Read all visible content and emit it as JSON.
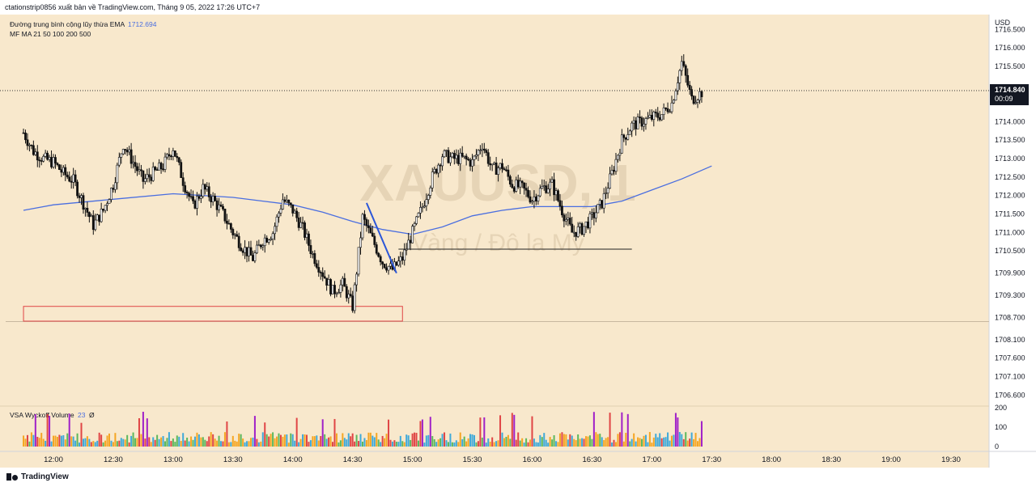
{
  "header": {
    "publish_line": "ctationstrip0856 xuất bản về TradingView.com, Tháng 9 05, 2022 17:26 UTC+7"
  },
  "footer": {
    "brand": "TradingView"
  },
  "colors": {
    "background": "#f8e8cc",
    "ema": "#4a6ee0",
    "ema_label": "#4a6ee0",
    "zone_border": "#e04545",
    "trendline": "#2b56d8",
    "level_line": "#222222",
    "price_badge": "#131722",
    "vol_orange": "#f5a623",
    "vol_blue": "#3fa9d9",
    "vol_green": "#5cb85c",
    "vol_red": "#e04545",
    "vol_purple": "#a020c8"
  },
  "chart_data": {
    "type": "candlestick",
    "symbol_watermark": "XAUUSD, 1",
    "watermark_subtitle": "Vàng / Đô la Mỹ",
    "currency_label": "USD",
    "indicators": [
      {
        "name": "Đường trung bình cộng lũy thừa EMA",
        "value": "1712.694"
      },
      {
        "name": "MF MA 21 50 100 200 500",
        "value": ""
      }
    ],
    "volume_indicator": {
      "name": "VSA Wyckoff Volume",
      "value": "23",
      "extra": "Ø",
      "ticks": [
        "200",
        "100",
        "0"
      ]
    },
    "y_ticks": [
      "1716.500",
      "1716.000",
      "1715.500",
      "1714.000",
      "1713.500",
      "1713.000",
      "1712.500",
      "1712.000",
      "1711.500",
      "1711.000",
      "1710.500",
      "1709.900",
      "1709.300",
      "1708.700",
      "1708.100",
      "1707.600",
      "1707.100",
      "1706.600"
    ],
    "y_range": [
      1706.3,
      1716.9
    ],
    "x_ticks": [
      "12:00",
      "12:30",
      "13:00",
      "13:30",
      "14:00",
      "14:30",
      "15:00",
      "15:30",
      "16:00",
      "16:30",
      "17:00",
      "17:30",
      "18:00",
      "18:30",
      "19:00",
      "19:30"
    ],
    "last_price": "1714.840",
    "countdown": "00:09",
    "zone": {
      "from_time": "11:45",
      "to_time": "14:55",
      "low": 1708.6,
      "high": 1709.0
    },
    "horizontal_line": 1708.6,
    "level_segment": {
      "from_time": "14:53",
      "to_time": "16:50",
      "price": 1710.55
    },
    "trendline": {
      "from_time": "14:37",
      "from_price": 1711.8,
      "to_time": "14:52",
      "to_price": 1709.9
    },
    "ema": {
      "times": [
        "11:45",
        "12:00",
        "12:30",
        "13:00",
        "13:15",
        "13:30",
        "13:45",
        "14:00",
        "14:15",
        "14:30",
        "14:45",
        "15:00",
        "15:15",
        "15:30",
        "15:45",
        "16:00",
        "16:15",
        "16:30",
        "16:45",
        "17:00",
        "17:15",
        "17:30"
      ],
      "values": [
        1711.6,
        1711.75,
        1711.9,
        1712.05,
        1712.0,
        1711.95,
        1711.85,
        1711.75,
        1711.55,
        1711.3,
        1711.08,
        1710.95,
        1711.15,
        1711.45,
        1711.6,
        1711.7,
        1711.7,
        1711.7,
        1711.85,
        1712.15,
        1712.45,
        1712.8
      ]
    },
    "price_path": {
      "times": [
        "11:45",
        "11:50",
        "11:55",
        "12:00",
        "12:05",
        "12:10",
        "12:15",
        "12:20",
        "12:25",
        "12:30",
        "12:35",
        "12:40",
        "12:45",
        "12:50",
        "12:55",
        "13:00",
        "13:05",
        "13:10",
        "13:15",
        "13:20",
        "13:25",
        "13:30",
        "13:35",
        "13:40",
        "13:45",
        "13:50",
        "13:55",
        "14:00",
        "14:05",
        "14:10",
        "14:15",
        "14:20",
        "14:25",
        "14:30",
        "14:35",
        "14:40",
        "14:45",
        "14:50",
        "14:55",
        "15:00",
        "15:05",
        "15:10",
        "15:15",
        "15:20",
        "15:25",
        "15:30",
        "15:35",
        "15:40",
        "15:45",
        "15:50",
        "15:55",
        "16:00",
        "16:05",
        "16:10",
        "16:15",
        "16:20",
        "16:25",
        "16:30",
        "16:35",
        "16:40",
        "16:45",
        "16:50",
        "16:55",
        "17:00",
        "17:05",
        "17:10",
        "17:15",
        "17:20",
        "17:25"
      ],
      "values": [
        1713.7,
        1713.2,
        1713.0,
        1712.9,
        1712.6,
        1712.4,
        1711.8,
        1711.2,
        1711.6,
        1712.3,
        1713.4,
        1712.9,
        1712.4,
        1712.6,
        1712.8,
        1713.3,
        1712.4,
        1711.7,
        1712.2,
        1711.9,
        1711.5,
        1711.0,
        1710.6,
        1710.3,
        1710.8,
        1711.0,
        1711.9,
        1711.6,
        1711.1,
        1710.4,
        1709.9,
        1709.4,
        1709.6,
        1709.0,
        1711.4,
        1710.8,
        1710.2,
        1710.0,
        1710.3,
        1711.0,
        1711.7,
        1712.5,
        1713.1,
        1713.0,
        1713.0,
        1712.9,
        1713.4,
        1712.7,
        1712.8,
        1712.3,
        1712.2,
        1711.9,
        1712.2,
        1712.3,
        1711.6,
        1711.0,
        1711.1,
        1711.4,
        1711.8,
        1712.6,
        1713.5,
        1713.9,
        1714.0,
        1714.1,
        1714.2,
        1714.5,
        1715.6,
        1714.6,
        1714.8
      ]
    }
  }
}
